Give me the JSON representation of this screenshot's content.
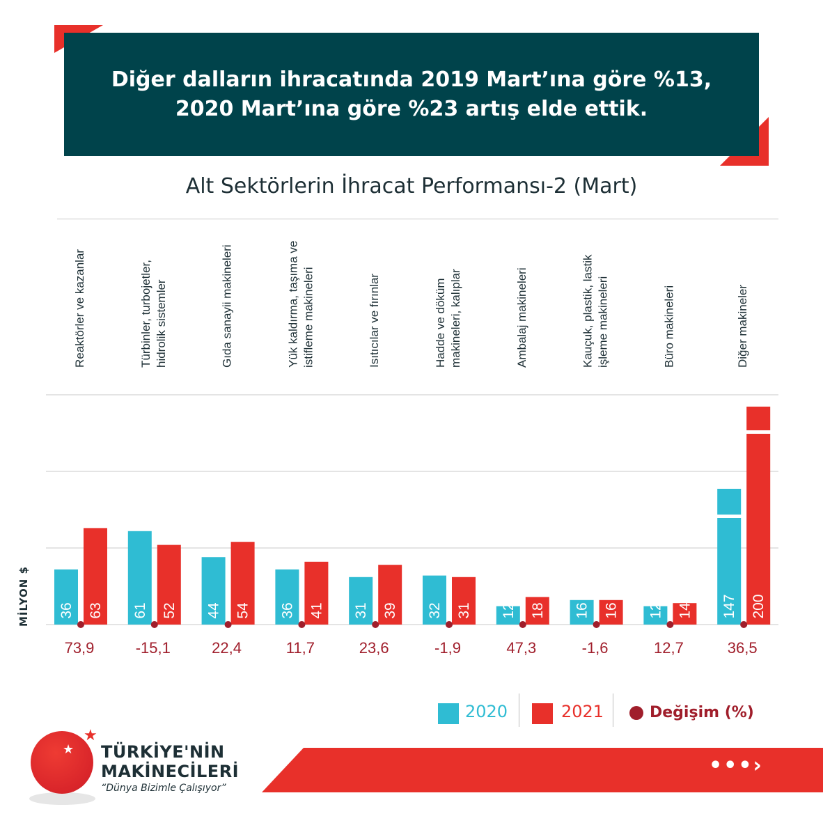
{
  "banner": {
    "text": "Diğer dalların ihracatında 2019 Mart’ına göre %13, 2020 Mart’ına göre %23 artış elde ettik."
  },
  "colors": {
    "banner_bg": "#00434b",
    "accent_red": "#e8302a",
    "series_2020": "#2fbcd3",
    "series_2021": "#e8302a",
    "change_dot": "#a01e2b"
  },
  "chart_data": {
    "type": "bar",
    "title": "Alt Sektörlerin İhracat Performansı-2 (Mart)",
    "ylabel": "MİLYON $",
    "categories": [
      "Reaktörler ve kazanlar",
      "Türbinler, turbojetler, hidrolik sistemler",
      "Gıda sanayii makineleri",
      "Yük kaldırma, taşıma ve istifleme makineleri",
      "Isıtıcılar ve fırınlar",
      "Hadde ve döküm makineleri, kalıplar",
      "Ambalaj makineleri",
      "Kauçuk, plastik, lastik işleme makineleri",
      "Büro makineleri",
      "Diğer makineler"
    ],
    "series": [
      {
        "name": "2020",
        "values": [
          36,
          61,
          44,
          36,
          31,
          32,
          12,
          16,
          12,
          147
        ]
      },
      {
        "name": "2021",
        "values": [
          63,
          52,
          54,
          41,
          39,
          31,
          18,
          16,
          14,
          200
        ]
      }
    ],
    "change": {
      "name": "Değişim (%)",
      "values": [
        "73,9",
        "-15,1",
        "22,4",
        "11,7",
        "23,6",
        "-1,9",
        "47,3",
        "-1,6",
        "12,7",
        "36,5"
      ]
    },
    "axis_break_last_category": true,
    "grid": true,
    "legend": "bottom-right"
  },
  "legend": {
    "s2020": "2020",
    "s2021": "2021",
    "change": "Değişim (%)"
  },
  "brand": {
    "line1": "TÜRKİYE'NİN",
    "line2": "MAKİNECİLERİ",
    "slogan": "“Dünya Bizimle Çalışıyor”"
  },
  "footer": {
    "arrow_text": "•••›"
  }
}
